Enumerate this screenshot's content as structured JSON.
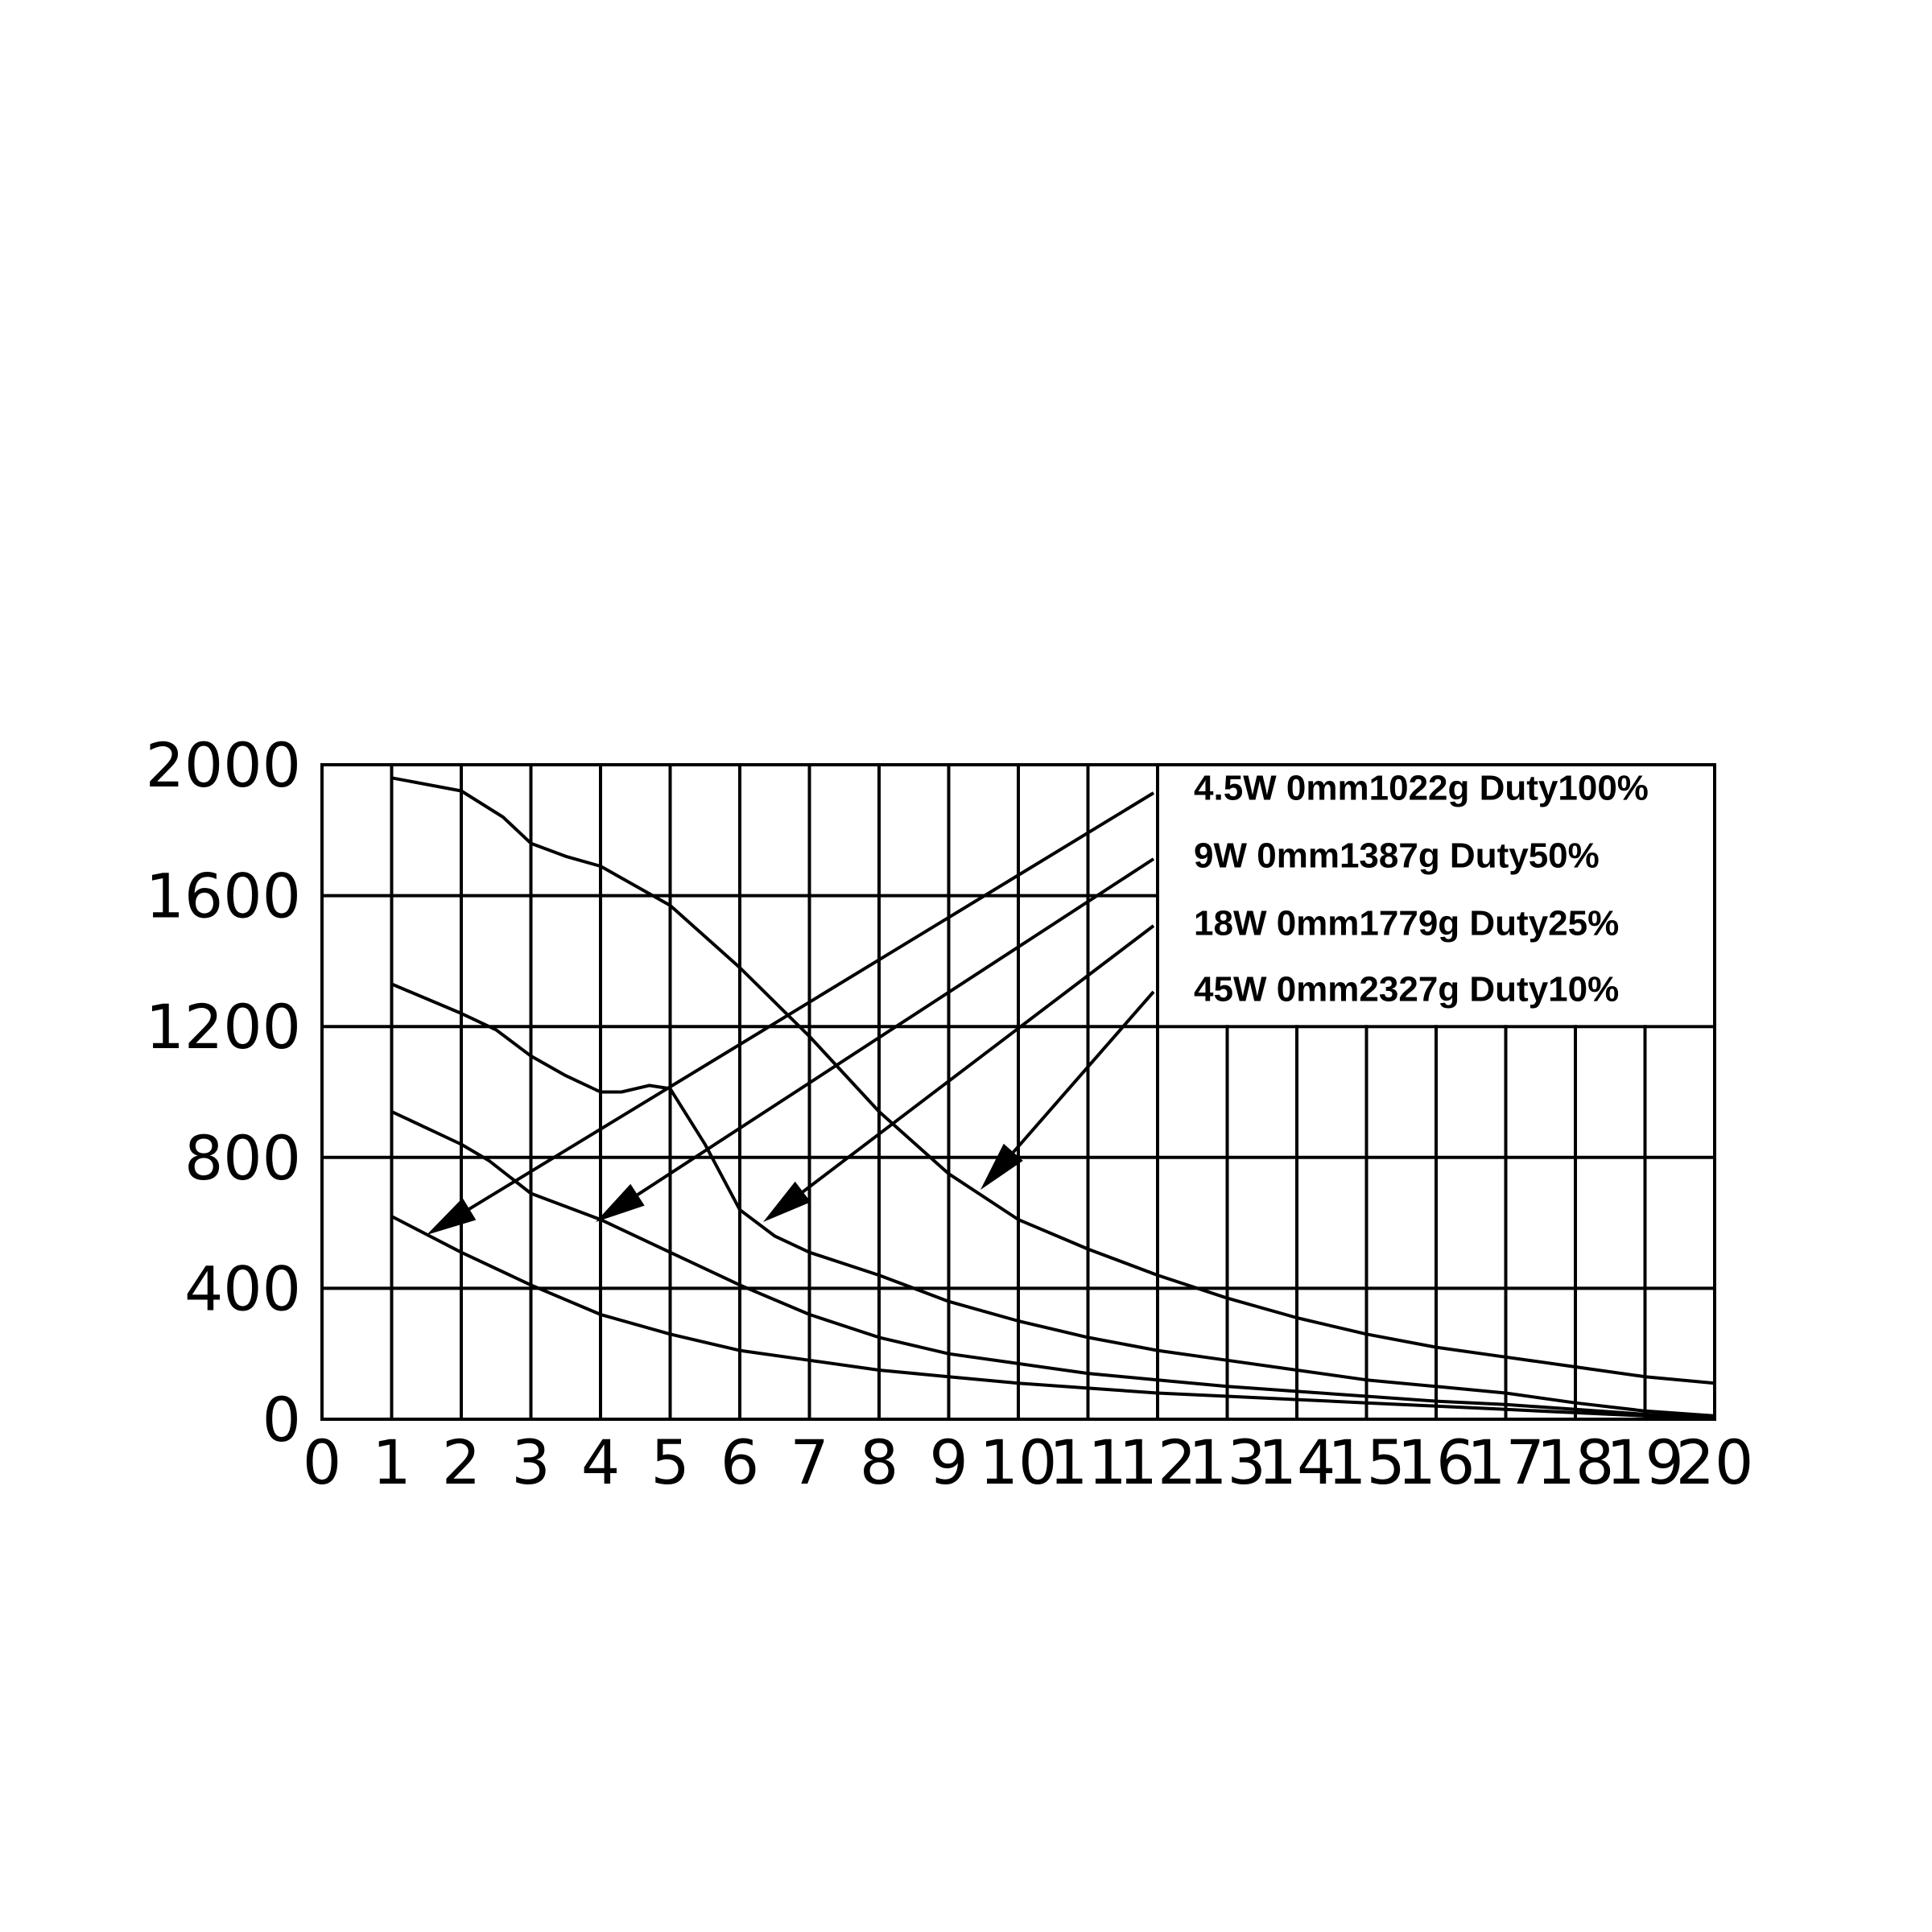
{
  "chart_data": {
    "type": "line",
    "title": "",
    "xlabel": "",
    "ylabel": "",
    "xlim": [
      0,
      20
    ],
    "ylim": [
      0,
      2000
    ],
    "x_ticks": [
      "0",
      "1",
      "2",
      "3",
      "4",
      "5",
      "6",
      "7",
      "8",
      "9",
      "10",
      "11",
      "12",
      "13",
      "14",
      "15",
      "16",
      "17",
      "18",
      "19",
      "20"
    ],
    "y_ticks": [
      "0",
      "400",
      "800",
      "1200",
      "1600",
      "2000"
    ],
    "grid": true,
    "legend_position": "top-right",
    "series": [
      {
        "name": "4.5W 0mm1022g Duty100%",
        "x": [
          1,
          2,
          2.6,
          3,
          3.5,
          4,
          5,
          6,
          7,
          8,
          9,
          10,
          11,
          12,
          13,
          14,
          15,
          16,
          17,
          18,
          19,
          20
        ],
        "y": [
          1960,
          1920,
          1840,
          1760,
          1720,
          1690,
          1570,
          1380,
          1170,
          940,
          750,
          610,
          520,
          440,
          370,
          310,
          260,
          220,
          190,
          160,
          130,
          110
        ]
      },
      {
        "name": "9W 0mm1387g Duty50%",
        "x": [
          1,
          2,
          2.5,
          3,
          3.5,
          4,
          4.3,
          4.7,
          5,
          5.5,
          6,
          6.5,
          7,
          8,
          9,
          10,
          11,
          12,
          13,
          14,
          15,
          16,
          17,
          18,
          19,
          20
        ],
        "y": [
          1330,
          1240,
          1190,
          1110,
          1050,
          1000,
          1000,
          1020,
          1010,
          840,
          640,
          560,
          510,
          440,
          360,
          300,
          250,
          210,
          180,
          150,
          120,
          100,
          80,
          50,
          25,
          10
        ]
      },
      {
        "name": "18W 0mm1779g Duty25%",
        "x": [
          1,
          2,
          2.4,
          3,
          4,
          5,
          6,
          7,
          8,
          9,
          10,
          11,
          12,
          13,
          14,
          15,
          16,
          17,
          18,
          19,
          20
        ],
        "y": [
          940,
          840,
          790,
          690,
          610,
          510,
          410,
          320,
          250,
          200,
          170,
          140,
          120,
          100,
          85,
          70,
          55,
          45,
          30,
          15,
          5
        ]
      },
      {
        "name": "45W 0mm2327g Duty10%",
        "x": [
          1,
          2,
          3,
          4,
          5,
          6,
          7,
          8,
          9,
          10,
          11,
          12,
          13,
          14,
          15,
          16,
          17,
          18,
          19,
          20
        ],
        "y": [
          620,
          510,
          410,
          320,
          260,
          210,
          180,
          150,
          130,
          110,
          95,
          80,
          70,
          60,
          50,
          40,
          30,
          20,
          10,
          0
        ]
      }
    ]
  },
  "legend": {
    "colors": {
      "line": "#000000",
      "background": "#ffffff"
    }
  }
}
